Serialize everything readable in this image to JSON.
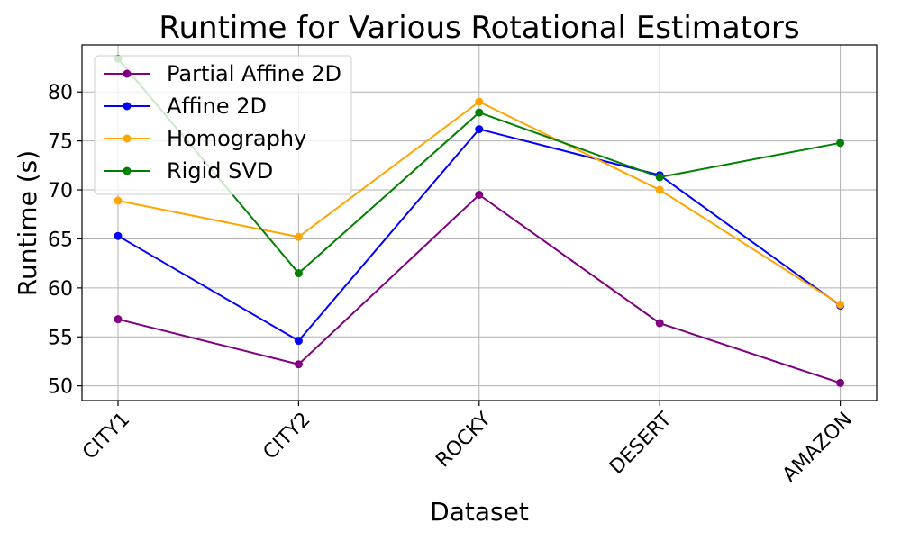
{
  "chart_data": {
    "type": "line",
    "title": "Runtime for Various Rotational Estimators",
    "xlabel": "Dataset",
    "ylabel": "Runtime (s)",
    "categories": [
      "CITY1",
      "CITY2",
      "ROCKY",
      "DESERT",
      "AMAZON"
    ],
    "ylim": [
      48.5,
      84.8
    ],
    "yticks": [
      50,
      55,
      60,
      65,
      70,
      75,
      80
    ],
    "grid": true,
    "legend_position": "top-left",
    "series": [
      {
        "name": "Partial Affine 2D",
        "color": "#800080",
        "values": [
          56.8,
          52.2,
          69.5,
          56.4,
          50.3
        ]
      },
      {
        "name": "Affine 2D",
        "color": "#0000ff",
        "values": [
          65.3,
          54.6,
          76.2,
          71.5,
          58.2
        ]
      },
      {
        "name": "Homography",
        "color": "#ffa500",
        "values": [
          68.9,
          65.2,
          79.0,
          70.0,
          58.3
        ]
      },
      {
        "name": "Rigid SVD",
        "color": "#008000",
        "values": [
          83.4,
          61.5,
          77.9,
          71.3,
          74.8
        ]
      }
    ]
  }
}
